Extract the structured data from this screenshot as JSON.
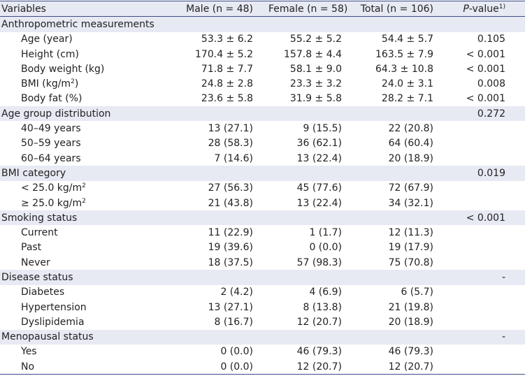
{
  "header": {
    "variables": "Variables",
    "male": "Male (n = 48)",
    "female": "Female (n = 58)",
    "total": "Total (n = 106)",
    "pvalue_p": "P",
    "pvalue_rest": "-value",
    "pvalue_sup": "1)"
  },
  "rows": [
    {
      "label": "Anthropometric measurements",
      "male": "",
      "female": "",
      "total": "",
      "p": ""
    },
    {
      "label": "Age (year)",
      "male": "53.3 ± 6.2",
      "female": "55.2 ± 5.2",
      "total": "54.4 ± 5.7",
      "p": "0.105"
    },
    {
      "label": "Height (cm)",
      "male": "170.4 ± 5.2",
      "female": "157.8 ± 4.4",
      "total": "163.5 ± 7.9",
      "p": "< 0.001"
    },
    {
      "label": "Body weight (kg)",
      "male": "71.8 ± 7.7",
      "female": "58.1 ± 9.0",
      "total": "64.3 ± 10.8",
      "p": "< 0.001"
    },
    {
      "label": "BMI (kg/m",
      "label_sup": "2",
      "label_after": ")",
      "male": "24.8 ± 2.8",
      "female": "23.3 ± 3.2",
      "total": "24.0 ± 3.1",
      "p": "0.008"
    },
    {
      "label": "Body fat (%)",
      "male": "23.6 ± 5.8",
      "female": "31.9 ± 5.8",
      "total": "28.2 ± 7.1",
      "p": "< 0.001"
    },
    {
      "label": "Age group distribution",
      "male": "",
      "female": "",
      "total": "",
      "p": "0.272"
    },
    {
      "label": "40–49 years",
      "male": "13 (27.1)",
      "female": "9 (15.5)",
      "total": "22 (20.8)",
      "p": ""
    },
    {
      "label": "50–59 years",
      "male": "28 (58.3)",
      "female": "36 (62.1)",
      "total": "64 (60.4)",
      "p": ""
    },
    {
      "label": "60–64 years",
      "male": "7 (14.6)",
      "female": "13 (22.4)",
      "total": "20 (18.9)",
      "p": ""
    },
    {
      "label": "BMI category",
      "male": "",
      "female": "",
      "total": "",
      "p": "0.019"
    },
    {
      "label": "< 25.0 kg/m",
      "label_sup": "2",
      "label_after": "",
      "male": "27 (56.3)",
      "female": "45 (77.6)",
      "total": "72 (67.9)",
      "p": ""
    },
    {
      "label": "≥ 25.0 kg/m",
      "label_sup": "2",
      "label_after": "",
      "male": "21 (43.8)",
      "female": "13 (22.4)",
      "total": "34 (32.1)",
      "p": ""
    },
    {
      "label": "Smoking status",
      "male": "",
      "female": "",
      "total": "",
      "p": "< 0.001"
    },
    {
      "label": "Current",
      "male": "11 (22.9)",
      "female": "1 (1.7)",
      "total": "12 (11.3)",
      "p": ""
    },
    {
      "label": "Past",
      "male": "19 (39.6)",
      "female": "0 (0.0)",
      "total": "19 (17.9)",
      "p": ""
    },
    {
      "label": "Never",
      "male": "18 (37.5)",
      "female": "57 (98.3)",
      "total": "75 (70.8)",
      "p": ""
    },
    {
      "label": "Disease status",
      "male": "",
      "female": "",
      "total": "",
      "p": "-"
    },
    {
      "label": "Diabetes",
      "male": "2 (4.2)",
      "female": "4 (6.9)",
      "total": "6 (5.7)",
      "p": ""
    },
    {
      "label": "Hypertension",
      "male": "13 (27.1)",
      "female": "8 (13.8)",
      "total": "21 (19.8)",
      "p": ""
    },
    {
      "label": "Dyslipidemia",
      "male": "8 (16.7)",
      "female": "12 (20.7)",
      "total": "20 (18.9)",
      "p": ""
    },
    {
      "label": "Menopausal status",
      "male": "",
      "female": "",
      "total": "",
      "p": "-"
    },
    {
      "label": "Yes",
      "male": "0 (0.0)",
      "female": "46 (79.3)",
      "total": "46 (79.3)",
      "p": ""
    },
    {
      "label": "No",
      "male": "0 (0.0)",
      "female": "12 (20.7)",
      "total": "12 (20.7)",
      "p": ""
    }
  ]
}
